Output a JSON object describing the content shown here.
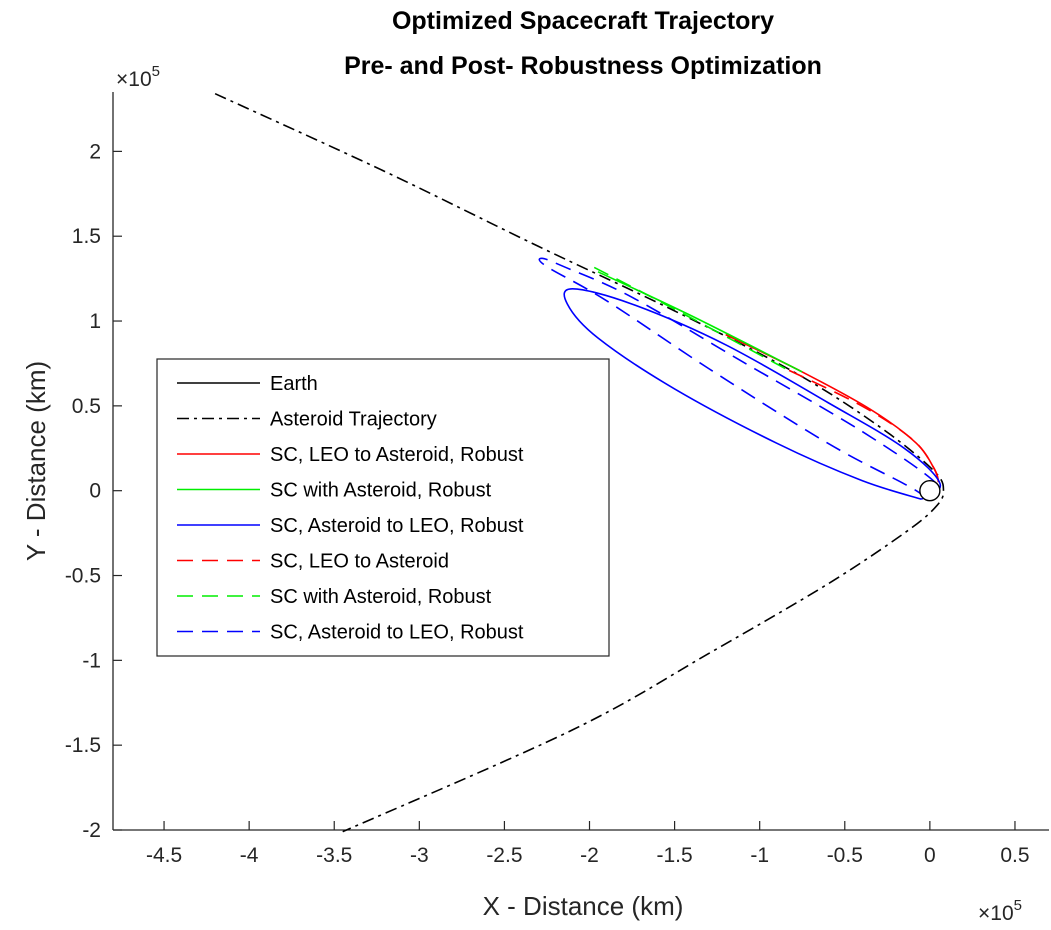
{
  "chart_data": {
    "type": "line",
    "title": "Optimized Spacecraft Trajectory",
    "subtitle": "Pre- and Post- Robustness Optimization",
    "xlabel": "X - Distance (km)",
    "ylabel": "Y - Distance (km)",
    "x_exponent_label": "×10",
    "x_exponent_power": "5",
    "y_exponent_label": "×10",
    "y_exponent_power": "5",
    "xlim": [
      -4.8,
      0.7
    ],
    "ylim": [
      -2.0,
      2.35
    ],
    "x_ticks": [
      -4.5,
      -4,
      -3.5,
      -3,
      -2.5,
      -2,
      -1.5,
      -1,
      -0.5,
      0,
      0.5
    ],
    "x_tick_labels": [
      "-4.5",
      "-4",
      "-3.5",
      "-3",
      "-2.5",
      "-2",
      "-1.5",
      "-1",
      "-0.5",
      "0",
      "0.5"
    ],
    "y_ticks": [
      -2,
      -1.5,
      -1,
      -0.5,
      0,
      0.5,
      1,
      1.5,
      2
    ],
    "y_tick_labels": [
      "-2",
      "-1.5",
      "-1",
      "-0.5",
      "0",
      "0.5",
      "1",
      "1.5",
      "2"
    ],
    "grid": false,
    "legend_position": "middle-left",
    "series": [
      {
        "name": "Earth",
        "color": "#000000",
        "style": "solid",
        "marker": "circle",
        "x": [
          0
        ],
        "y": [
          0
        ]
      },
      {
        "name": "Asteroid Trajectory",
        "color": "#000000",
        "style": "dashdot",
        "x": [
          -4.2,
          -3.2,
          -2.3,
          -1.5,
          -0.8,
          -0.3,
          0.02,
          0.08,
          0.03,
          -0.15,
          -0.6,
          -1.3,
          -2.1,
          -3.45
        ],
        "y": [
          2.34,
          1.88,
          1.44,
          1.06,
          0.7,
          0.38,
          0.12,
          0.0,
          -0.1,
          -0.25,
          -0.55,
          -0.96,
          -1.41,
          -2.01
        ]
      },
      {
        "name": "SC, LEO to Asteroid, Robust",
        "color": "#ff0000",
        "style": "solid",
        "x": [
          0.05,
          0.03,
          -0.08,
          -0.35,
          -0.75,
          -1.2
        ],
        "y": [
          0.05,
          0.12,
          0.28,
          0.48,
          0.7,
          0.92
        ]
      },
      {
        "name": "SC with Asteroid, Robust",
        "color": "#00ee00",
        "style": "solid",
        "x": [
          -0.75,
          -1.4,
          -1.95
        ],
        "y": [
          0.7,
          1.03,
          1.29
        ]
      },
      {
        "name": "SC, Asteroid to LEO, Robust",
        "color": "#0000ff",
        "style": "solid",
        "x": [
          -0.05,
          0.06,
          -0.15,
          -0.6,
          -1.2,
          -1.75,
          -2.1,
          -2.13,
          -1.95,
          -1.5,
          -0.9,
          -0.4,
          -0.05
        ],
        "y": [
          -0.05,
          0.04,
          0.25,
          0.52,
          0.86,
          1.1,
          1.19,
          1.1,
          0.9,
          0.6,
          0.28,
          0.06,
          -0.05
        ]
      },
      {
        "name": "SC, LEO to Asteroid",
        "color": "#ff0000",
        "style": "dashed",
        "x": [
          0.05,
          0.02,
          -0.1,
          -0.4,
          -0.85
        ],
        "y": [
          0.06,
          0.14,
          0.3,
          0.5,
          0.72
        ]
      },
      {
        "name": "SC with Asteroid, Robust",
        "color": "#00ee00",
        "style": "dashed",
        "x": [
          -0.85,
          -1.5,
          -2.0
        ],
        "y": [
          0.72,
          1.07,
          1.33
        ]
      },
      {
        "name": "SC, Asteroid to LEO, Robust",
        "color": "#0000ff",
        "style": "dashed",
        "x": [
          -0.05,
          0.04,
          -0.4,
          -1.1,
          -1.75,
          -2.15,
          -2.28,
          -2.25,
          -1.9,
          -1.3,
          -0.6,
          -0.15,
          -0.05
        ],
        "y": [
          -0.02,
          0.04,
          0.35,
          0.76,
          1.14,
          1.32,
          1.37,
          1.32,
          1.12,
          0.72,
          0.28,
          0.04,
          -0.02
        ]
      }
    ]
  }
}
